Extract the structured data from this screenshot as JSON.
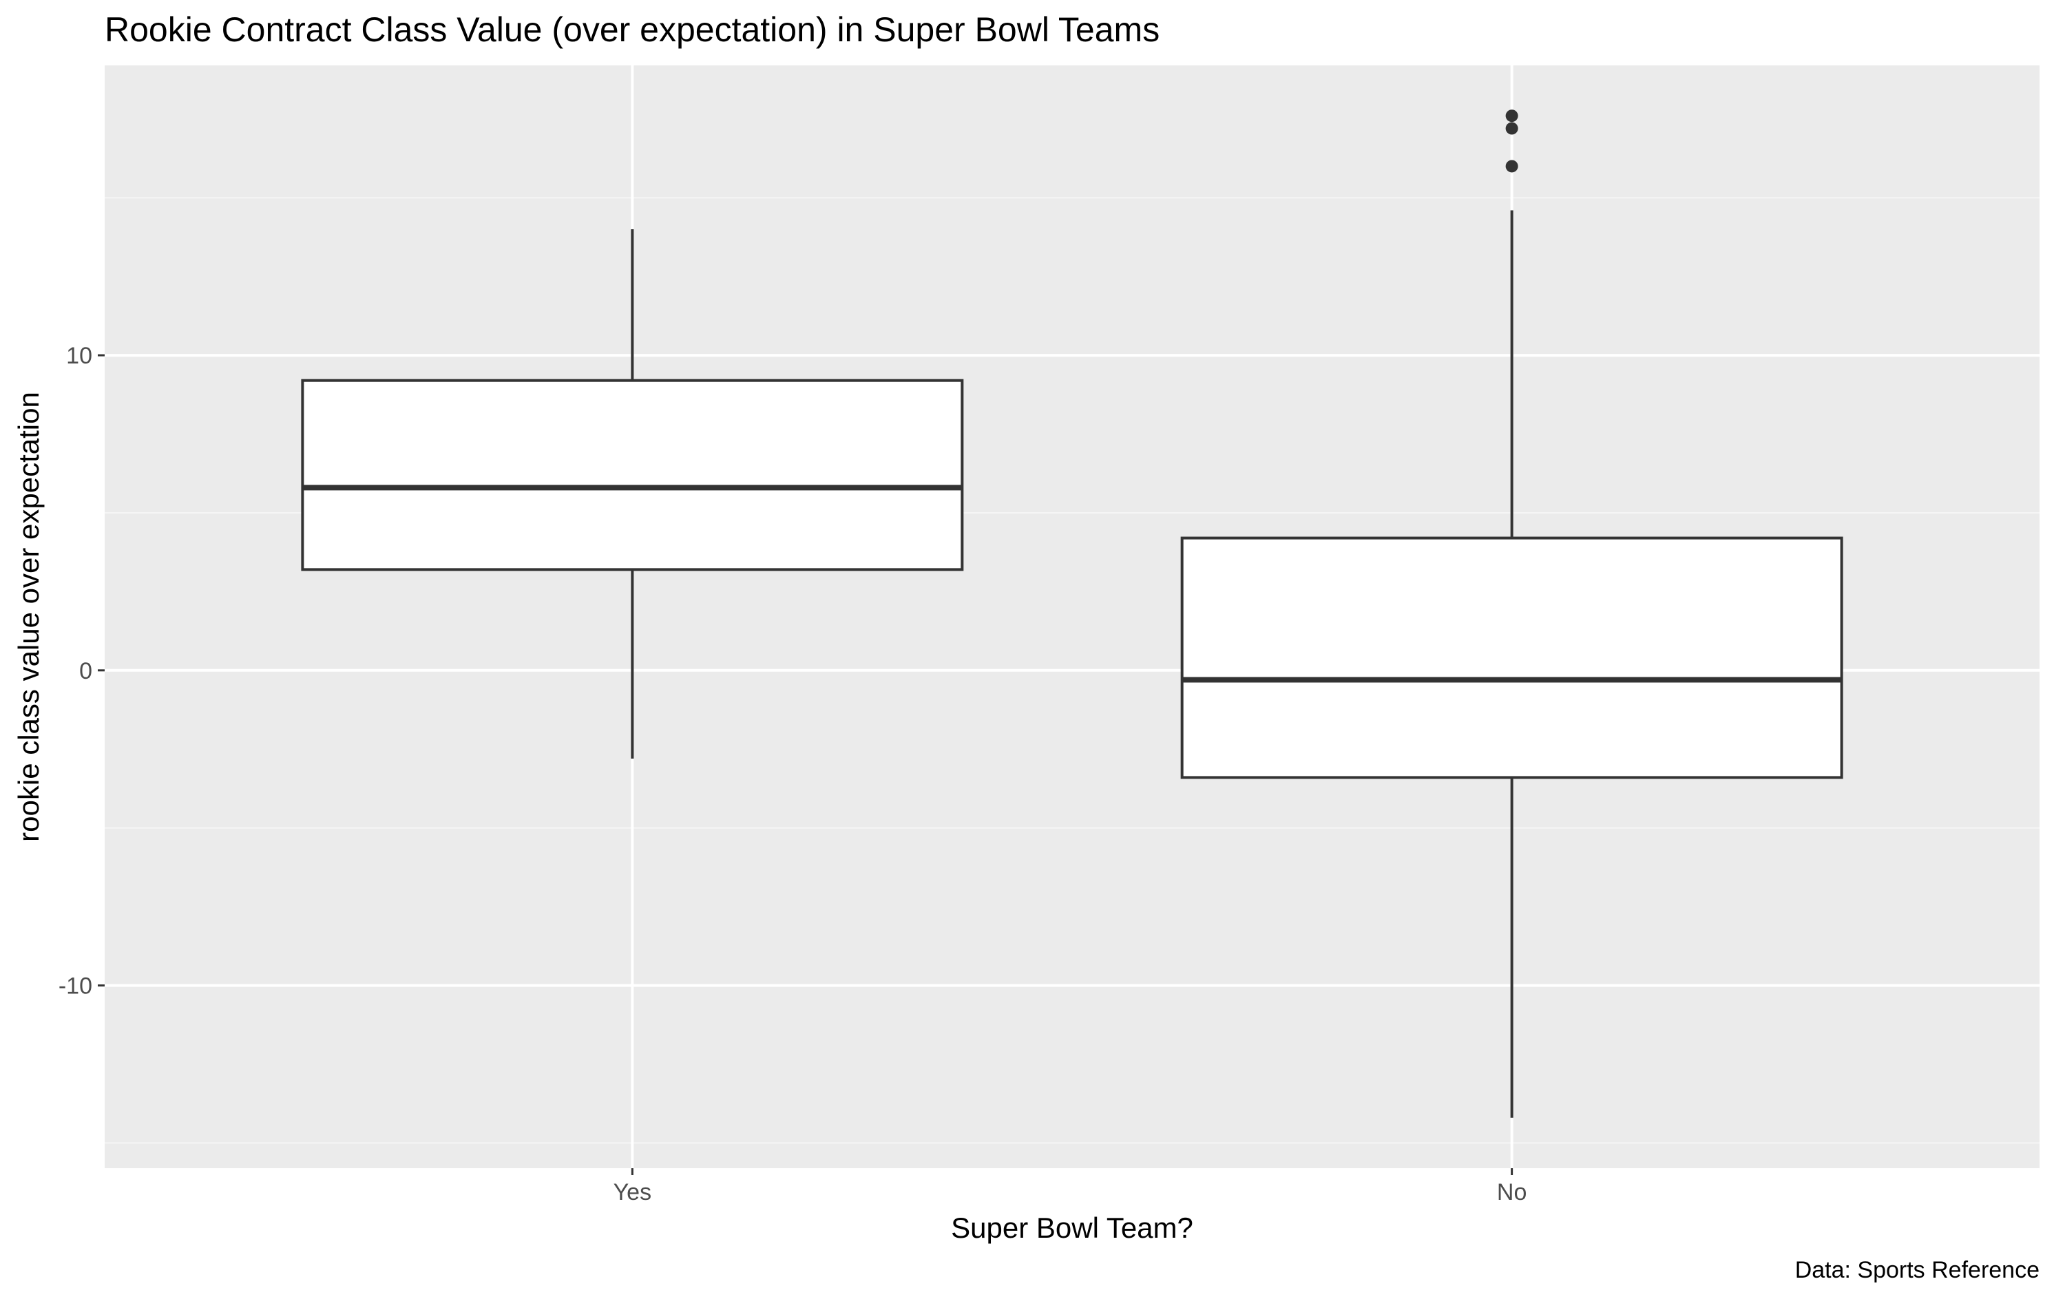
{
  "chart_data": {
    "type": "boxplot",
    "title": "Rookie Contract Class Value (over expectation) in Super Bowl Teams",
    "xlabel": "Super Bowl Team?",
    "ylabel": "rookie class value over expectation",
    "caption": "Data: Sports Reference",
    "categories": [
      "Yes",
      "No"
    ],
    "yticks": [
      {
        "value": 10,
        "label": "10"
      },
      {
        "value": 0,
        "label": "0"
      },
      {
        "value": -10,
        "label": "-10"
      }
    ],
    "ylim": [
      -15.8,
      19.2
    ],
    "grid": true,
    "boxes": [
      {
        "category": "Yes",
        "lower_whisker": -2.8,
        "q1": 3.2,
        "median": 5.8,
        "q3": 9.2,
        "upper_whisker": 14.0,
        "outliers": []
      },
      {
        "category": "No",
        "lower_whisker": -14.2,
        "q1": -3.4,
        "median": -0.3,
        "q3": 4.2,
        "upper_whisker": 14.6,
        "outliers": [
          16.0,
          17.2,
          17.6
        ]
      }
    ],
    "colors": {
      "panel_background": "#ebebeb",
      "grid_major": "#ffffff",
      "grid_minor": "#f5f5f5",
      "box_fill": "#ffffff",
      "box_stroke": "#333333"
    }
  }
}
